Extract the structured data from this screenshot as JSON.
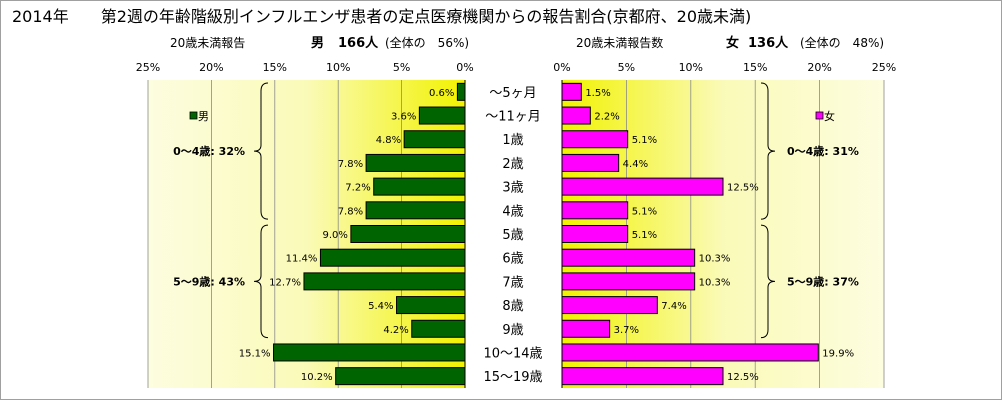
{
  "title": "2014年　　第2週の年齢階級別インフルエンザ患者の定点医療機関からの報告割合(京都府、20歳未満)",
  "left_header": {
    "label": "20歳未満報告",
    "gender": "男",
    "count": "166人",
    "share": "(全体の　56%)"
  },
  "right_header": {
    "label": "20歳未満報告数",
    "gender": "女",
    "count": "136人",
    "share": "(全体の　48%)"
  },
  "colors": {
    "male": "#006400",
    "female": "#ff00ff",
    "plot_gradient_inner": "#fdfde0",
    "plot_gradient_outer": "#f2f200"
  },
  "chart_data": {
    "type": "bar",
    "orientation": "horizontal-back-to-back",
    "categories": [
      "〜5ヶ月",
      "〜11ヶ月",
      "1歳",
      "2歳",
      "3歳",
      "4歳",
      "5歳",
      "6歳",
      "7歳",
      "8歳",
      "9歳",
      "10〜14歳",
      "15〜19歳"
    ],
    "series": [
      {
        "name": "男",
        "values": [
          0.6,
          3.6,
          4.8,
          7.8,
          7.2,
          7.8,
          9.0,
          11.4,
          12.7,
          5.4,
          4.2,
          15.1,
          10.2
        ],
        "labels": [
          "0.6%",
          "3.6%",
          "4.8%",
          "7.8%",
          "7.2%",
          "7.8%",
          "9.0%",
          "11.4%",
          "12.7%",
          "5.4%",
          "4.2%",
          "15.1%",
          "10.2%"
        ]
      },
      {
        "name": "女",
        "values": [
          1.5,
          2.2,
          5.1,
          4.4,
          12.5,
          5.1,
          5.1,
          10.3,
          10.3,
          7.4,
          3.7,
          19.9,
          12.5
        ],
        "labels": [
          "1.5%",
          "2.2%",
          "5.1%",
          "4.4%",
          "12.5%",
          "5.1%",
          "5.1%",
          "10.3%",
          "10.3%",
          "7.4%",
          "3.7%",
          "19.9%",
          "12.5%"
        ]
      }
    ],
    "xlim": [
      0,
      25
    ],
    "ticks": [
      25,
      20,
      15,
      10,
      5,
      0
    ],
    "tick_labels": [
      "25%",
      "20%",
      "15%",
      "10%",
      "5%",
      "0%"
    ],
    "grid": "vertical",
    "legend": {
      "male": "男",
      "female": "女"
    },
    "annotations": {
      "male": [
        {
          "text": "0〜4歳:  32%",
          "from": 0,
          "to": 5
        },
        {
          "text": "5〜9歳:  43%",
          "from": 6,
          "to": 10
        }
      ],
      "female": [
        {
          "text": "0〜4歳:  31%",
          "from": 0,
          "to": 5
        },
        {
          "text": "5〜9歳:  37%",
          "from": 6,
          "to": 10
        }
      ]
    }
  }
}
